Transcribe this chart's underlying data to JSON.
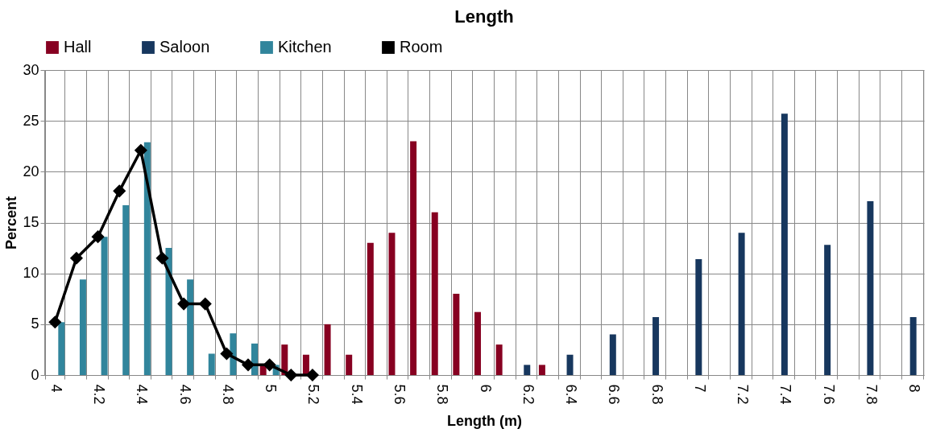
{
  "chart_data": {
    "type": "bar",
    "title": "Length",
    "xlabel": "Length (m)",
    "ylabel": "Percent",
    "categories": [
      "4",
      null,
      "4.2",
      null,
      "4.4",
      null,
      "4.6",
      null,
      "4.8",
      null,
      "5",
      null,
      "5.2",
      null,
      "5.4",
      null,
      "5.6",
      null,
      "5.8",
      null,
      "6",
      null,
      "6.2",
      null,
      "6.4",
      null,
      "6.6",
      null,
      "6.8",
      null,
      "7",
      null,
      "7.2",
      null,
      "7.4",
      null,
      "7.6",
      null,
      "7.8",
      null,
      "8"
    ],
    "series": [
      {
        "name": "Hall",
        "color": "#870021",
        "values": [
          null,
          null,
          null,
          null,
          null,
          null,
          null,
          null,
          null,
          null,
          1,
          3,
          2,
          5,
          2,
          13,
          14,
          23,
          16,
          8,
          6.2,
          3,
          null,
          1,
          null,
          null,
          null,
          null,
          null,
          null,
          null,
          null,
          null,
          null,
          null,
          null,
          null,
          null,
          null,
          null,
          null
        ]
      },
      {
        "name": "Saloon",
        "color": "#17375e",
        "values": [
          null,
          null,
          null,
          null,
          null,
          null,
          null,
          null,
          null,
          null,
          null,
          null,
          null,
          null,
          null,
          null,
          null,
          null,
          null,
          null,
          null,
          null,
          1,
          null,
          2,
          null,
          4,
          null,
          5.7,
          null,
          11.4,
          null,
          14,
          null,
          25.7,
          null,
          12.8,
          null,
          17.1,
          null,
          5.7
        ]
      },
      {
        "name": "Kitchen",
        "color": "#31859c",
        "values": [
          5.2,
          9.4,
          13.6,
          16.7,
          22.9,
          12.5,
          9.4,
          2.1,
          4.1,
          3.1,
          1,
          null,
          null,
          null,
          null,
          null,
          null,
          null,
          null,
          null,
          null,
          null,
          null,
          null,
          null,
          null,
          null,
          null,
          null,
          null,
          null,
          null,
          null,
          null,
          null,
          null,
          null,
          null,
          null,
          null,
          null
        ]
      },
      {
        "name": "Room",
        "type": "line",
        "color": "#000000",
        "values": [
          5.2,
          11.5,
          13.6,
          18.1,
          22.1,
          11.5,
          7,
          7,
          2.1,
          1,
          1,
          0,
          0,
          null,
          null,
          null,
          null,
          null,
          null,
          null,
          null,
          null,
          null,
          null,
          null,
          null,
          null,
          null,
          null,
          null,
          null,
          null,
          null,
          null,
          null,
          null,
          null,
          null,
          null,
          null,
          null
        ]
      }
    ],
    "ylim": [
      0,
      30
    ],
    "yticks": [
      0,
      5,
      10,
      15,
      20,
      25,
      30
    ],
    "grid": true,
    "legend": "top",
    "marker": "diamond",
    "line_style": "solid"
  }
}
